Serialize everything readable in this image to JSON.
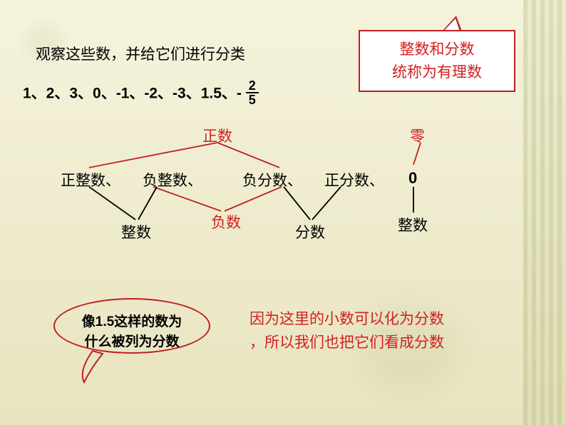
{
  "title_line": "观察这些数，并给它们进行分类",
  "number_list_prefix": "1、2、3、0、-1、-2、-3、1.5、-",
  "fraction": {
    "num": "2",
    "den": "5"
  },
  "box_right": {
    "line1": "整数和分数",
    "line2": "统称为有理数"
  },
  "labels": {
    "positive": "正数",
    "zero": "零",
    "pos_int": "正整数、",
    "neg_int": "负整数、",
    "neg_frac": "负分数、",
    "pos_frac": "正分数、",
    "zero_num": "0",
    "negative": "负数",
    "integer": "整数",
    "fraction_label": "分数",
    "integer2": "整数"
  },
  "oval": {
    "line1": "像1.5这样的数为",
    "line2": "什么被列为分数"
  },
  "bottom_right": {
    "line1": "因为这里的小数可以化为分数",
    "line2": "，所以我们也把它们看成分数"
  },
  "colors": {
    "red": "#d32020",
    "black": "#000000",
    "box_border": "#c02020",
    "line_red": "#c02020",
    "line_black": "#000000"
  },
  "fontsize": {
    "body": 20,
    "small": 18
  },
  "lines": {
    "stroke_red": "#c02020",
    "stroke_black": "#000000",
    "stroke_width": 1.8,
    "segments_red": [
      [
        305,
        200,
        125,
        235
      ],
      [
        305,
        200,
        392,
        235
      ],
      [
        590,
        200,
        580,
        231
      ],
      [
        215,
        262,
        310,
        296
      ],
      [
        395,
        262,
        315,
        296
      ]
    ],
    "segments_black": [
      [
        125,
        262,
        190,
        308
      ],
      [
        220,
        262,
        194,
        308
      ],
      [
        398,
        262,
        435,
        308
      ],
      [
        478,
        262,
        438,
        308
      ],
      [
        580,
        262,
        580,
        298
      ]
    ]
  }
}
